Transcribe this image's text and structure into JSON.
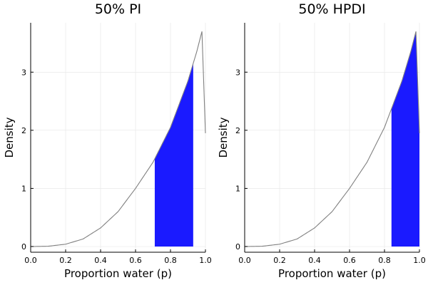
{
  "chart_data": [
    {
      "type": "area",
      "title": "50% PI",
      "xlabel": "Proportion water (p)",
      "ylabel": "Density",
      "xlim": [
        0.0,
        1.0
      ],
      "ylim": [
        0,
        3.8
      ],
      "xticks": [
        "0.0",
        "0.2",
        "0.4",
        "0.6",
        "0.8",
        "1.0"
      ],
      "yticks": [
        "0",
        "1",
        "2",
        "3"
      ],
      "grid": true,
      "series": [
        {
          "x": [
            0.0,
            0.1,
            0.2,
            0.3,
            0.4,
            0.5,
            0.6,
            0.7,
            0.8,
            0.9,
            0.95,
            0.98,
            1.0
          ],
          "y": [
            0.0,
            0.005,
            0.04,
            0.13,
            0.32,
            0.6,
            1.0,
            1.45,
            2.05,
            2.85,
            3.35,
            3.7,
            1.95
          ]
        }
      ],
      "shaded_interval": {
        "x_range": [
          0.71,
          0.93
        ],
        "color": "#1a1aff"
      }
    },
    {
      "type": "area",
      "title": "50% HPDI",
      "xlabel": "Proportion water (p)",
      "ylabel": "Density",
      "xlim": [
        0.0,
        1.0
      ],
      "ylim": [
        0,
        3.8
      ],
      "xticks": [
        "0.0",
        "0.2",
        "0.4",
        "0.6",
        "0.8",
        "1.0"
      ],
      "yticks": [
        "0",
        "1",
        "2",
        "3"
      ],
      "grid": true,
      "series": [
        {
          "x": [
            0.0,
            0.1,
            0.2,
            0.3,
            0.4,
            0.5,
            0.6,
            0.7,
            0.8,
            0.9,
            0.95,
            0.98,
            1.0
          ],
          "y": [
            0.0,
            0.005,
            0.04,
            0.13,
            0.32,
            0.6,
            1.0,
            1.45,
            2.05,
            2.85,
            3.35,
            3.7,
            1.95
          ]
        }
      ],
      "shaded_interval": {
        "x_range": [
          0.84,
          1.0
        ],
        "color": "#1a1aff"
      }
    }
  ]
}
